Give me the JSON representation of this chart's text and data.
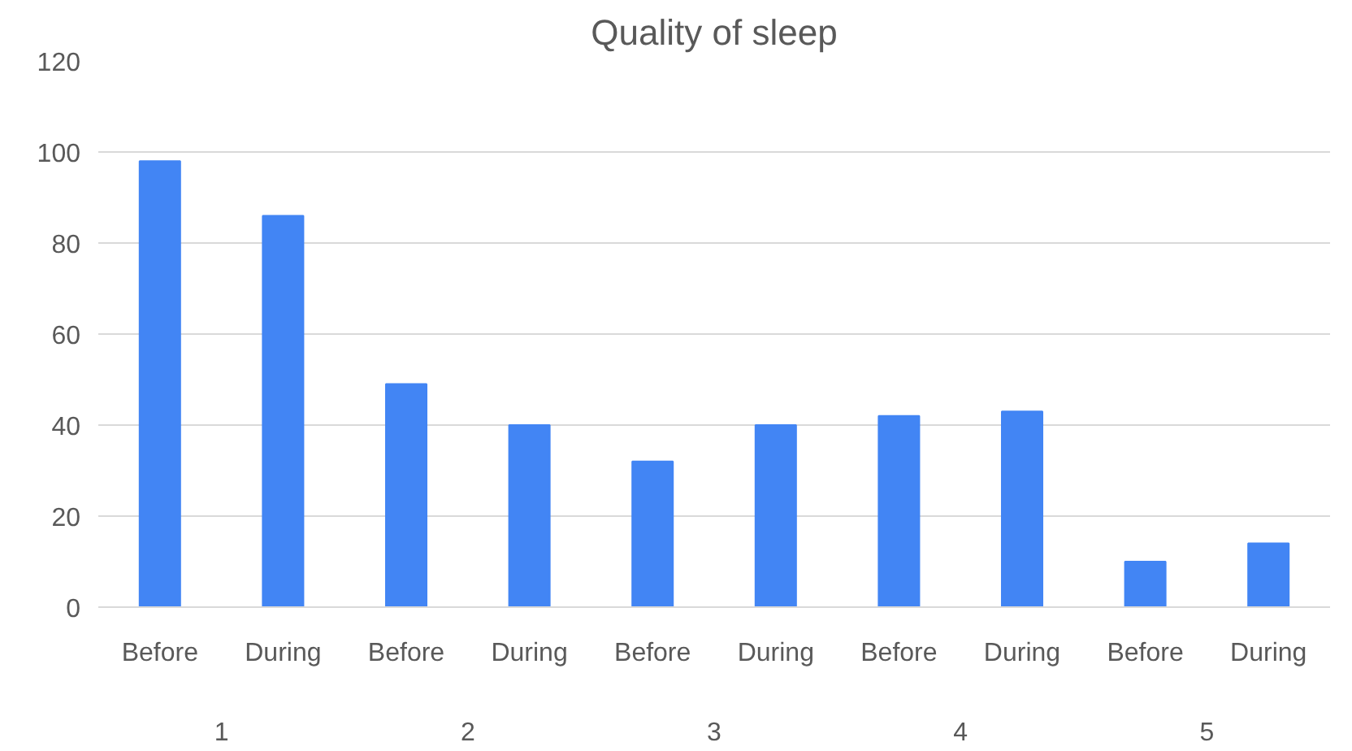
{
  "chart_data": {
    "type": "bar",
    "title": "Quality of sleep",
    "categories": [
      "1",
      "2",
      "3",
      "4",
      "5"
    ],
    "series": [
      {
        "name": "Before",
        "color": "#4285f4",
        "values": [
          98,
          49,
          32,
          42,
          10
        ]
      },
      {
        "name": "During",
        "color": "#4285f4",
        "values": [
          86,
          40,
          40,
          43,
          14
        ]
      }
    ],
    "ylim": [
      0,
      120
    ],
    "yticks": [
      0,
      20,
      40,
      60,
      80,
      100,
      120
    ],
    "grid": "y"
  }
}
